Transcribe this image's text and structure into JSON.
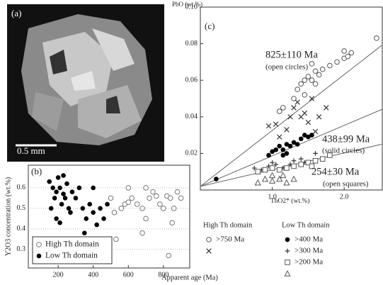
{
  "image_panel": {
    "label": "(a)",
    "scale_bar": "0.5 mm"
  },
  "chart_data": [
    {
      "type": "scatter",
      "panel_label": "(b)",
      "x_label": "Apparent age (Ma)",
      "y_label": "Y2O3 concentration (wt.%)",
      "xlim": [
        30,
        950
      ],
      "xticks": [
        200,
        400,
        600,
        800
      ],
      "ylim": [
        0.21,
        0.71
      ],
      "yticks": [
        0.3,
        0.4,
        0.5,
        0.6
      ],
      "grid": true,
      "legend": "lower left",
      "series": [
        {
          "name": "High Th domain",
          "marker": "open-circle",
          "color": "#777",
          "x": [
            500,
            520,
            530,
            560,
            580,
            600,
            600,
            620,
            650,
            680,
            680,
            700,
            700,
            720,
            740,
            760,
            780,
            800,
            820,
            830,
            840,
            850,
            860,
            880,
            900
          ],
          "values": [
            0.55,
            0.48,
            0.35,
            0.5,
            0.52,
            0.53,
            0.6,
            0.55,
            0.52,
            0.5,
            0.38,
            0.45,
            0.6,
            0.55,
            0.58,
            0.56,
            0.52,
            0.5,
            0.56,
            0.27,
            0.55,
            0.43,
            0.5,
            0.58,
            0.55
          ]
        },
        {
          "name": "Low Th domain",
          "marker": "filled-circle",
          "color": "#000",
          "x": [
            150,
            160,
            170,
            180,
            190,
            190,
            200,
            210,
            210,
            220,
            230,
            230,
            240,
            250,
            260,
            270,
            280,
            300,
            320,
            340,
            350,
            360,
            380,
            400,
            400,
            420,
            440,
            460,
            480
          ],
          "values": [
            0.63,
            0.5,
            0.6,
            0.55,
            0.58,
            0.45,
            0.65,
            0.6,
            0.43,
            0.52,
            0.57,
            0.66,
            0.55,
            0.62,
            0.5,
            0.48,
            0.58,
            0.55,
            0.6,
            0.5,
            0.38,
            0.45,
            0.52,
            0.48,
            0.6,
            0.42,
            0.5,
            0.45,
            0.52
          ]
        }
      ]
    },
    {
      "type": "scatter",
      "panel_label": "(c)",
      "x_label": "ThO2* (wt.%)",
      "y_label": "PbO (wt.%)",
      "xlim": [
        0,
        2.53
      ],
      "xticks": [
        {
          "value": 1,
          "label": "1.0"
        },
        {
          "value": 2,
          "label": "2.0"
        }
      ],
      "ylim": [
        0,
        0.1
      ],
      "yticks": [
        {
          "value": 0.02,
          "label": "0.02"
        },
        {
          "value": 0.04,
          "label": "0.04"
        },
        {
          "value": 0.06,
          "label": "0.06"
        },
        {
          "value": 0.08,
          "label": "0.08"
        },
        {
          "value": 0.1,
          "label": "0.10"
        }
      ],
      "lines": [
        {
          "label": "825±110 Ma",
          "sublabel": "(open circles)",
          "x": [
            0,
            2.52
          ],
          "y": [
            0.002,
            0.079
          ]
        },
        {
          "label": "438±99 Ma",
          "sublabel": "(solid circles)",
          "x": [
            0,
            2.52
          ],
          "y": [
            0.002,
            0.044
          ]
        },
        {
          "label": "254±30 Ma",
          "sublabel": "(open squares)",
          "x": [
            0,
            2.52
          ],
          "y": [
            0.002,
            0.025
          ]
        }
      ],
      "series_groups": [
        {
          "title": "High Th domain",
          "series": [
            {
              "name": ">750 Ma",
              "marker": "open-circle",
              "color": "#555",
              "x": [
                1.1,
                1.15,
                1.3,
                1.35,
                1.4,
                1.45,
                1.45,
                1.5,
                1.55,
                1.55,
                1.6,
                1.6,
                1.65,
                1.7,
                1.8,
                1.9,
                2.0,
                2.0,
                2.05,
                2.1,
                2.45
              ],
              "values": [
                0.043,
                0.045,
                0.05,
                0.055,
                0.058,
                0.06,
                0.052,
                0.062,
                0.06,
                0.069,
                0.065,
                0.058,
                0.063,
                0.066,
                0.068,
                0.07,
                0.072,
                0.076,
                0.073,
                0.075,
                0.083
              ]
            },
            {
              "marker": "cross",
              "color": "#333",
              "x": [
                0.95,
                1.05,
                1.1,
                1.2,
                1.25,
                1.3,
                1.35,
                1.4,
                1.45,
                1.5,
                1.55,
                1.6,
                1.65,
                1.75
              ],
              "values": [
                0.035,
                0.036,
                0.029,
                0.033,
                0.04,
                0.045,
                0.048,
                0.04,
                0.042,
                0.037,
                0.05,
                0.032,
                0.04,
                0.045
              ]
            }
          ]
        },
        {
          "title": "Low Th domain",
          "series": [
            {
              "name": ">400 Ma",
              "marker": "filled-circle",
              "color": "#000",
              "x": [
                0.22,
                0.95,
                1.0,
                1.05,
                1.1,
                1.15,
                1.15,
                1.2,
                1.2,
                1.25,
                1.3,
                1.35,
                1.4,
                1.45,
                1.5,
                1.55
              ],
              "values": [
                0.006,
                0.019,
                0.021,
                0.022,
                0.024,
                0.022,
                0.019,
                0.025,
                0.02,
                0.024,
                0.026,
                0.025,
                0.028,
                0.03,
                0.029,
                0.03
              ]
            },
            {
              "name": ">300 Ma",
              "marker": "plus",
              "color": "#333",
              "x": [
                0.75,
                0.85,
                0.95,
                1.0,
                1.05,
                1.15,
                1.25,
                1.3,
                1.4,
                1.45,
                1.6
              ],
              "values": [
                0.012,
                0.011,
                0.013,
                0.015,
                0.014,
                0.012,
                0.014,
                0.016,
                0.017,
                0.015,
                0.02
              ]
            },
            {
              "name": ">200 Ma",
              "marker": "open-square",
              "color": "#555",
              "x": [
                0.8,
                0.9,
                1.0,
                1.1,
                1.2,
                1.3,
                1.4,
                1.5,
                1.55,
                1.6,
                1.7,
                1.8
              ],
              "values": [
                0.01,
                0.011,
                0.012,
                0.011,
                0.012,
                0.013,
                0.014,
                0.015,
                0.013,
                0.016,
                0.017,
                0.019
              ]
            },
            {
              "marker": "open-triangle",
              "color": "#555",
              "x": [
                0.8,
                0.9,
                1.0,
                1.0,
                1.1,
                1.15,
                1.2,
                1.3
              ],
              "values": [
                0.004,
                0.006,
                0.005,
                0.008,
                0.006,
                0.008,
                0.004,
                0.006
              ]
            }
          ]
        }
      ]
    }
  ]
}
